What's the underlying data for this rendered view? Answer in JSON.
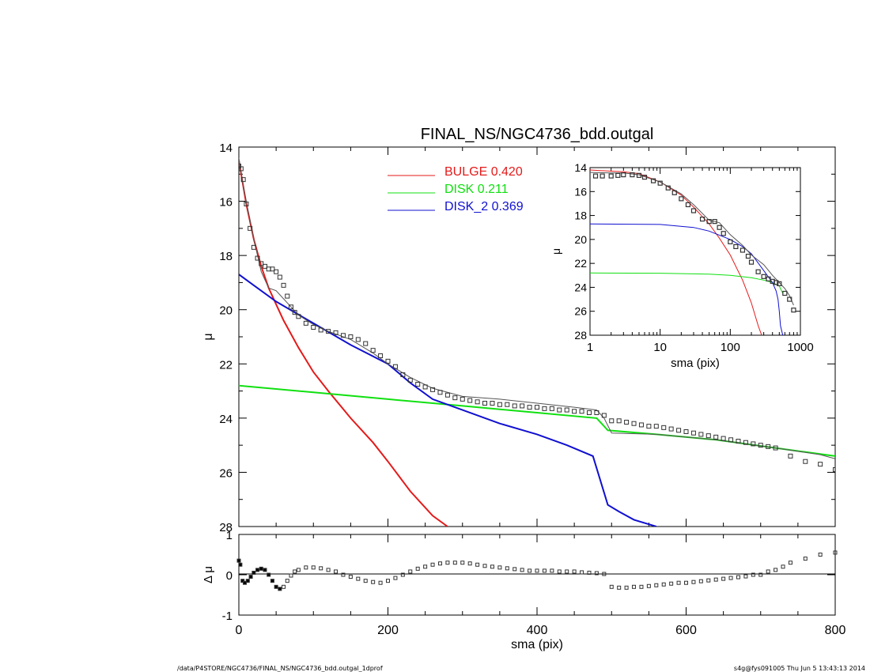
{
  "title": "FINAL_NS/NGC4736_bdd.outgal",
  "footer": {
    "left": "/data/P4STORE/NGC4736/FINAL_NS/NGC4736_bdd.outgal_1dprof",
    "right": "s4g@fys091005  Thu Jun  5 13:43:13 2014"
  },
  "colors": {
    "bulge": "#e41a1a",
    "disk": "#10e010",
    "disk2": "#1010d0",
    "model": "#555555",
    "data": "#333333"
  },
  "chart_data": [
    {
      "type": "line",
      "panel": "main",
      "title": "FINAL_NS/NGC4736_bdd.outgal",
      "xlabel": "",
      "ylabel": "μ",
      "xlim": [
        0,
        800
      ],
      "ylim": [
        28,
        14
      ],
      "yticks": [
        "14",
        "16",
        "18",
        "20",
        "22",
        "24",
        "26",
        "28"
      ],
      "legend": [
        {
          "name": "BULGE",
          "value": "0.420",
          "color": "#e41a1a"
        },
        {
          "name": "DISK",
          "value": "0.211",
          "color": "#10e010"
        },
        {
          "name": "DISK_2",
          "value": "0.369",
          "color": "#1010d0"
        }
      ],
      "series": [
        {
          "name": "BULGE",
          "x": [
            0,
            5,
            10,
            20,
            30,
            40,
            50,
            60,
            80,
            100,
            120,
            150,
            180,
            200,
            230,
            260,
            280
          ],
          "y": [
            14.5,
            15.3,
            16.1,
            17.4,
            18.4,
            19.2,
            19.8,
            20.4,
            21.4,
            22.3,
            23.0,
            24.0,
            24.9,
            25.6,
            26.7,
            27.6,
            28.0
          ]
        },
        {
          "name": "DISK",
          "x": [
            0,
            100,
            200,
            300,
            400,
            480,
            495,
            560,
            640,
            720,
            800
          ],
          "y": [
            22.8,
            23.05,
            23.3,
            23.55,
            23.8,
            24.0,
            24.45,
            24.6,
            24.8,
            25.1,
            25.4
          ]
        },
        {
          "name": "DISK_2",
          "x": [
            0,
            20,
            50,
            100,
            150,
            200,
            230,
            260,
            300,
            350,
            400,
            440,
            475,
            485,
            495,
            510,
            530,
            560
          ],
          "y": [
            18.7,
            19.1,
            19.7,
            20.5,
            21.3,
            22.0,
            22.7,
            23.3,
            23.7,
            24.2,
            24.6,
            25.0,
            25.4,
            26.3,
            27.2,
            27.45,
            27.75,
            28.0
          ]
        },
        {
          "name": "model",
          "x": [
            0,
            5,
            10,
            20,
            30,
            40,
            50,
            60,
            70,
            80,
            100,
            120,
            150,
            180,
            200,
            230,
            260,
            300,
            350,
            400,
            450,
            480,
            490,
            500,
            560,
            640,
            720,
            780,
            800
          ],
          "y": [
            14.4,
            15.3,
            16.0,
            17.4,
            18.6,
            19.2,
            19.3,
            19.6,
            19.9,
            20.2,
            20.55,
            20.8,
            21.1,
            21.6,
            22.0,
            22.5,
            22.9,
            23.2,
            23.3,
            23.45,
            23.6,
            23.7,
            24.0,
            24.55,
            24.6,
            24.8,
            25.1,
            25.35,
            25.5
          ]
        },
        {
          "name": "data",
          "x": [
            0,
            3,
            6,
            10,
            15,
            20,
            25,
            30,
            35,
            40,
            45,
            50,
            55,
            60,
            65,
            70,
            75,
            80,
            90,
            100,
            110,
            120,
            130,
            140,
            150,
            160,
            170,
            180,
            190,
            200,
            210,
            220,
            230,
            240,
            250,
            260,
            270,
            280,
            290,
            300,
            310,
            320,
            330,
            340,
            350,
            360,
            370,
            380,
            390,
            400,
            410,
            420,
            430,
            440,
            450,
            460,
            470,
            480,
            490,
            500,
            510,
            520,
            530,
            540,
            550,
            560,
            570,
            580,
            590,
            600,
            610,
            620,
            630,
            640,
            650,
            660,
            670,
            680,
            690,
            700,
            710,
            720,
            740,
            760,
            780,
            800
          ],
          "y": [
            14.7,
            14.8,
            15.2,
            16.1,
            17.0,
            17.7,
            18.1,
            18.3,
            18.4,
            18.5,
            18.5,
            18.6,
            18.8,
            19.1,
            19.5,
            19.9,
            20.1,
            20.25,
            20.5,
            20.65,
            20.75,
            20.8,
            20.85,
            20.95,
            21.0,
            21.1,
            21.25,
            21.5,
            21.7,
            21.9,
            22.1,
            22.4,
            22.6,
            22.75,
            22.85,
            22.95,
            23.05,
            23.15,
            23.25,
            23.3,
            23.35,
            23.4,
            23.45,
            23.45,
            23.5,
            23.5,
            23.55,
            23.55,
            23.6,
            23.6,
            23.65,
            23.65,
            23.7,
            23.7,
            23.75,
            23.75,
            23.8,
            23.8,
            23.9,
            24.1,
            24.1,
            24.15,
            24.2,
            24.25,
            24.3,
            24.3,
            24.35,
            24.4,
            24.45,
            24.5,
            24.55,
            24.6,
            24.65,
            24.7,
            24.75,
            24.8,
            24.85,
            24.9,
            24.95,
            25.0,
            25.05,
            25.1,
            25.4,
            25.6,
            25.7,
            25.9
          ]
        }
      ]
    },
    {
      "type": "line",
      "panel": "inset",
      "xlabel": "sma (pix)",
      "ylabel": "μ",
      "xscale": "log",
      "xlim": [
        1,
        1000
      ],
      "ylim": [
        28,
        14
      ],
      "xticks": [
        "1",
        "10",
        "100",
        "1000"
      ],
      "yticks": [
        "14",
        "16",
        "18",
        "20",
        "22",
        "24",
        "26",
        "28"
      ],
      "series": [
        {
          "name": "BULGE",
          "x": [
            1,
            2,
            3,
            5,
            10,
            20,
            30,
            50,
            70,
            100,
            150,
            200,
            250,
            280
          ],
          "y": [
            14.2,
            14.3,
            14.35,
            14.5,
            15.2,
            16.3,
            17.3,
            18.7,
            19.9,
            21.3,
            23.4,
            25.3,
            27.2,
            28.0
          ]
        },
        {
          "name": "DISK",
          "x": [
            1,
            10,
            50,
            100,
            200,
            300,
            400,
            500,
            560
          ],
          "y": [
            22.8,
            22.82,
            22.9,
            23.0,
            23.2,
            23.4,
            23.6,
            23.9,
            24.5
          ]
        },
        {
          "name": "DISK_2",
          "x": [
            1,
            10,
            30,
            50,
            100,
            150,
            200,
            300,
            400,
            450,
            480,
            500,
            520,
            560
          ],
          "y": [
            18.7,
            18.75,
            19.0,
            19.3,
            20.0,
            20.6,
            21.2,
            22.6,
            23.6,
            24.3,
            25.0,
            26.0,
            27.2,
            28.0
          ]
        },
        {
          "name": "model",
          "x": [
            1,
            2,
            3,
            5,
            10,
            20,
            30,
            50,
            70,
            100,
            150,
            200,
            300,
            400,
            500,
            600,
            700,
            800
          ],
          "y": [
            14.4,
            14.45,
            14.45,
            14.6,
            15.2,
            16.2,
            17.1,
            18.4,
            18.6,
            19.6,
            20.5,
            21.3,
            22.1,
            23.0,
            23.6,
            24.1,
            24.7,
            25.5
          ]
        },
        {
          "name": "data",
          "x": [
            1.2,
            1.5,
            2,
            2.5,
            3,
            4,
            5,
            6,
            8,
            10,
            13,
            16,
            20,
            25,
            30,
            40,
            50,
            60,
            70,
            80,
            100,
            120,
            150,
            180,
            200,
            250,
            300,
            350,
            400,
            450,
            500,
            600,
            700,
            800
          ],
          "y": [
            14.7,
            14.7,
            14.7,
            14.65,
            14.6,
            14.6,
            14.65,
            14.8,
            15.1,
            15.3,
            15.7,
            16.1,
            16.6,
            17.1,
            17.6,
            18.3,
            18.5,
            18.5,
            19.0,
            19.5,
            20.2,
            20.6,
            20.9,
            21.4,
            21.9,
            22.7,
            23.1,
            23.3,
            23.5,
            23.6,
            23.7,
            24.5,
            25.0,
            25.9
          ]
        }
      ]
    },
    {
      "type": "scatter",
      "panel": "residual",
      "xlabel": "sma (pix)",
      "ylabel": "Δ μ",
      "xlim": [
        0,
        800
      ],
      "ylim": [
        -1,
        1
      ],
      "xticks": [
        "0",
        "200",
        "400",
        "600",
        "800"
      ],
      "yticks": [
        "1",
        "0",
        "-1"
      ],
      "series": [
        {
          "name": "residual",
          "x": [
            0,
            2,
            5,
            8,
            12,
            16,
            20,
            25,
            30,
            35,
            40,
            45,
            50,
            55,
            60,
            65,
            70,
            75,
            80,
            90,
            100,
            110,
            120,
            130,
            140,
            150,
            160,
            170,
            180,
            190,
            200,
            210,
            220,
            230,
            240,
            250,
            260,
            270,
            280,
            290,
            300,
            310,
            320,
            330,
            340,
            350,
            360,
            370,
            380,
            390,
            400,
            410,
            420,
            430,
            440,
            450,
            460,
            470,
            480,
            490,
            500,
            510,
            520,
            530,
            540,
            550,
            560,
            570,
            580,
            590,
            600,
            610,
            620,
            630,
            640,
            650,
            660,
            670,
            680,
            690,
            700,
            710,
            720,
            730,
            740,
            760,
            780,
            800
          ],
          "y": [
            0.35,
            0.25,
            -0.15,
            -0.2,
            -0.15,
            -0.05,
            0.05,
            0.12,
            0.15,
            0.12,
            0.0,
            -0.15,
            -0.3,
            -0.35,
            -0.3,
            -0.15,
            -0.02,
            0.08,
            0.12,
            0.18,
            0.18,
            0.16,
            0.12,
            0.08,
            0.0,
            -0.05,
            -0.1,
            -0.15,
            -0.18,
            -0.2,
            -0.15,
            -0.08,
            0.0,
            0.08,
            0.15,
            0.2,
            0.25,
            0.28,
            0.3,
            0.3,
            0.3,
            0.28,
            0.25,
            0.22,
            0.2,
            0.18,
            0.16,
            0.14,
            0.12,
            0.1,
            0.1,
            0.1,
            0.1,
            0.08,
            0.08,
            0.08,
            0.06,
            0.05,
            0.04,
            0.02,
            -0.3,
            -0.32,
            -0.32,
            -0.3,
            -0.3,
            -0.28,
            -0.26,
            -0.24,
            -0.22,
            -0.2,
            -0.2,
            -0.18,
            -0.16,
            -0.14,
            -0.12,
            -0.1,
            -0.08,
            -0.06,
            -0.04,
            0.0,
            0.0,
            0.08,
            0.12,
            0.2,
            0.3,
            0.4,
            0.5,
            0.55
          ]
        }
      ]
    }
  ]
}
